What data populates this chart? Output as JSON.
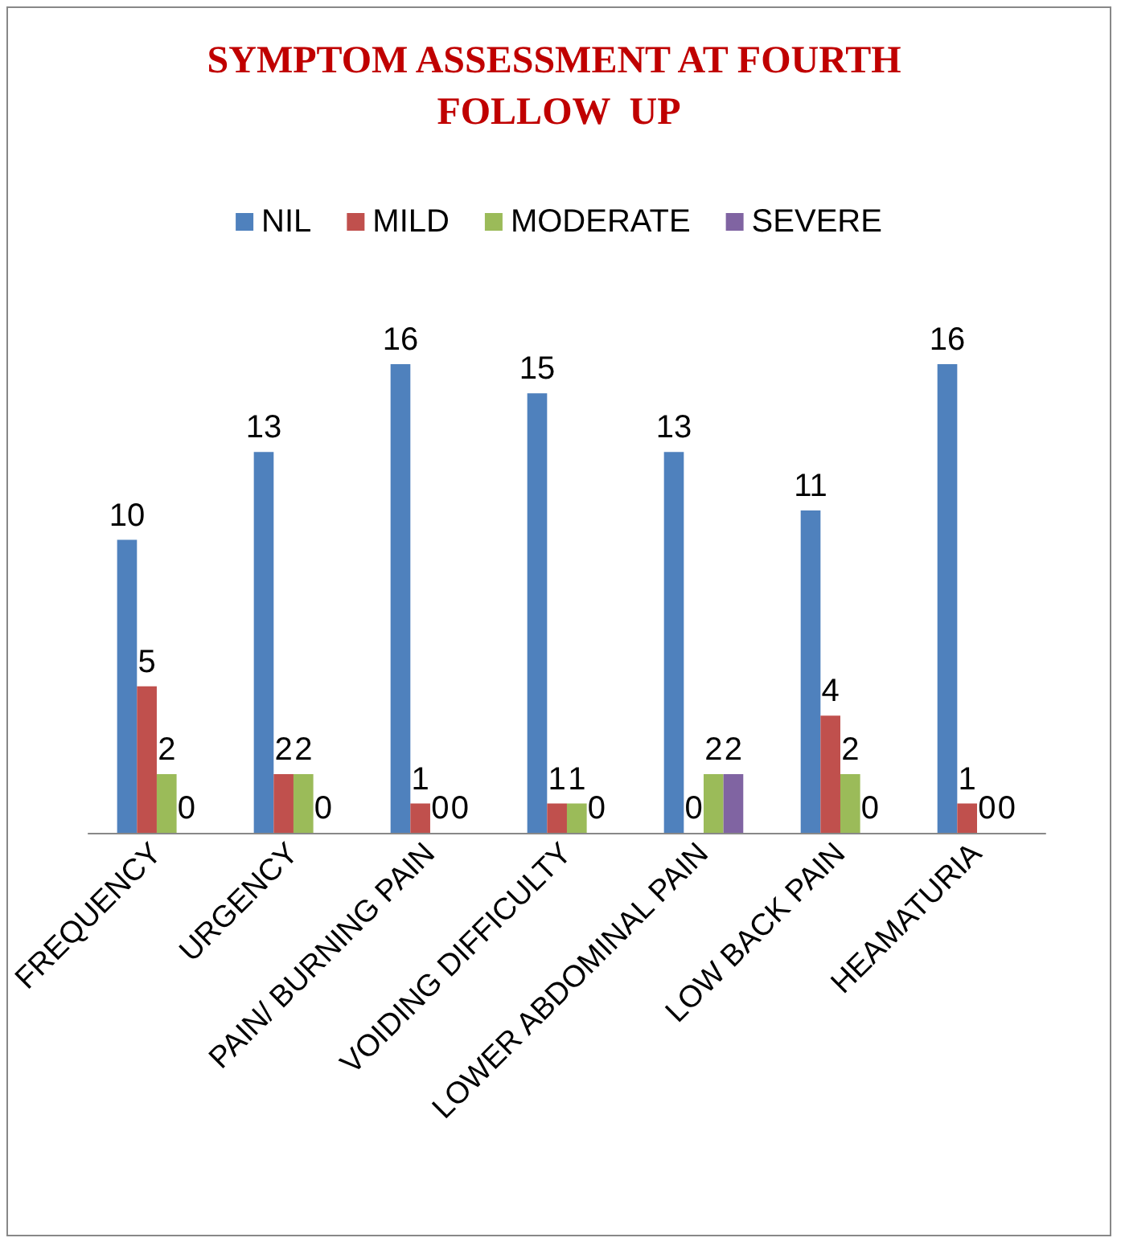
{
  "chart_data": {
    "type": "bar",
    "title": "SYMPTOM ASSESSMENT AT FOURTH FOLLOW  UP",
    "categories": [
      "FREQUENCY",
      "URGENCY",
      "PAIN/ BURNING PAIN",
      "VOIDING DIFFICULTY",
      "LOWER ABDOMINAL PAIN",
      "LOW BACK PAIN",
      "HEAMATURIA"
    ],
    "series": [
      {
        "name": "NIL",
        "color": "#4f81bd",
        "values": [
          10,
          13,
          16,
          15,
          13,
          11,
          16
        ]
      },
      {
        "name": "MILD",
        "color": "#c0504d",
        "values": [
          5,
          2,
          1,
          1,
          0,
          4,
          1
        ]
      },
      {
        "name": "MODERATE",
        "color": "#9bbb59",
        "values": [
          2,
          2,
          0,
          1,
          2,
          2,
          0
        ]
      },
      {
        "name": "SEVERE",
        "color": "#8064a2",
        "values": [
          0,
          0,
          0,
          0,
          2,
          0,
          0
        ]
      }
    ],
    "data_labels": true,
    "legend": "top",
    "grid": false
  }
}
